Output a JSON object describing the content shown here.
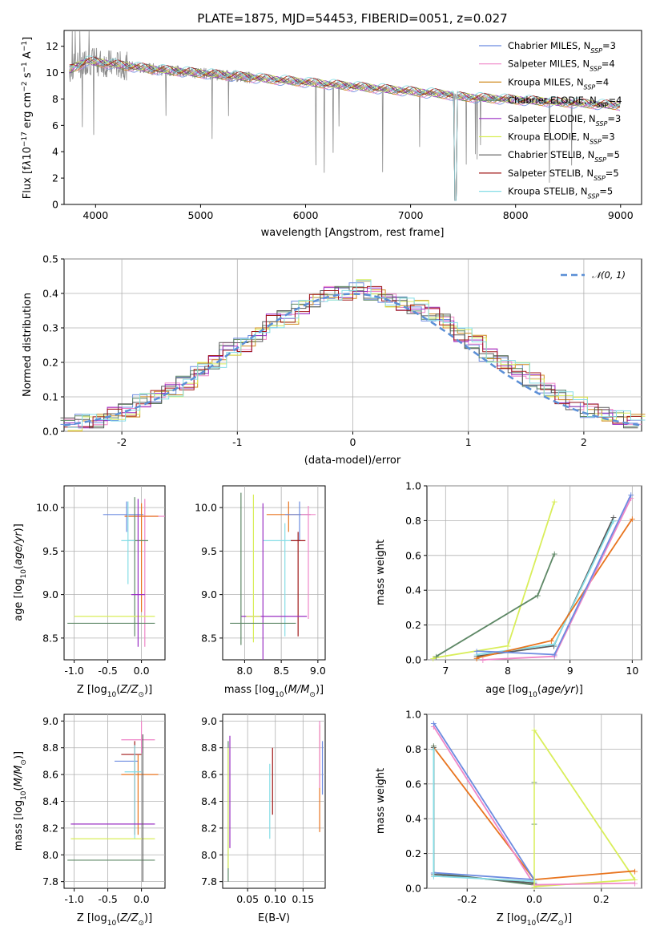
{
  "figure": {
    "title": "PLATE=1875, MJD=54453, FIBERID=0051, z=0.027"
  },
  "colors": {
    "chabrier_miles": "#6c8be0",
    "salpeter_miles": "#ef86c8",
    "kroupa_miles": "#d08a1e",
    "chabrier_elodie": "#5e8866",
    "salpeter_elodie": "#9a2fc3",
    "kroupa_elodie": "#d9ee5a",
    "chabrier_stelib": "#5a5a5a",
    "salpeter_stelib": "#a01818",
    "kroupa_stelib": "#85dde6",
    "data": "#8a8a8a",
    "fit_orange": "#e8741e",
    "gaussian": "#5b8fd6"
  },
  "legend_models": [
    {
      "name": "Chabrier MILES",
      "n": "3",
      "color": "#6c8be0"
    },
    {
      "name": "Salpeter MILES",
      "n": "4",
      "color": "#ef86c8"
    },
    {
      "name": "Kroupa MILES",
      "n": "4",
      "color": "#d08a1e"
    },
    {
      "name": "Chabrier ELODIE",
      "n": "4",
      "color": "#5e8866"
    },
    {
      "name": "Salpeter ELODIE",
      "n": "3",
      "color": "#9a2fc3"
    },
    {
      "name": "Kroupa ELODIE",
      "n": "3",
      "color": "#d9ee5a"
    },
    {
      "name": "Chabrier STELIB",
      "n": "5",
      "color": "#5a5a5a"
    },
    {
      "name": "Salpeter STELIB",
      "n": "5",
      "color": "#a01818"
    },
    {
      "name": "Kroupa STELIB",
      "n": "5",
      "color": "#85dde6"
    }
  ],
  "chart_data": [
    {
      "id": "spectrum",
      "type": "line",
      "title": "PLATE=1875, MJD=54453, FIBERID=0051, z=0.027",
      "xlabel": "wavelength [Angstrom, rest frame]",
      "ylabel": "Flux [fλ10⁻¹⁷ erg cm⁻² s⁻¹ A⁻¹]",
      "xlim": [
        3700,
        9200
      ],
      "ylim": [
        0,
        13.2
      ],
      "xticks": [
        4000,
        5000,
        6000,
        7000,
        8000,
        9000
      ],
      "yticks": [
        0,
        2,
        4,
        6,
        8,
        10,
        12
      ],
      "series": [
        {
          "x": [
            3750,
            3800,
            3850,
            3900,
            3950,
            4000,
            4100,
            4200,
            4300,
            4400,
            4500,
            4700,
            4900,
            5100,
            5300,
            5500,
            5700,
            5900,
            6100,
            6300,
            6500,
            6700,
            6900,
            7100,
            7300,
            7400,
            7420
          ],
          "y": [
            9.2,
            10.5,
            11.0,
            10.8,
            10.9,
            11.0,
            10.8,
            10.6,
            10.3,
            10.4,
            10.2,
            10.0,
            9.8,
            9.6,
            9.5,
            9.3,
            9.2,
            9.1,
            9.0,
            8.9,
            8.8,
            8.7,
            8.6,
            8.5,
            8.3,
            8.2,
            0.5
          ]
        },
        {
          "x": [
            7400,
            7600,
            7800,
            8000,
            8200,
            8400,
            8600,
            8800,
            9000
          ],
          "y": [
            8.1,
            8.0,
            7.9,
            7.8,
            7.8,
            7.7,
            7.6,
            7.5,
            7.5
          ]
        }
      ]
    },
    {
      "id": "residuals",
      "type": "bar",
      "xlabel": "(data-model)/error",
      "ylabel": "Normed distribution",
      "xlim": [
        -2.5,
        2.5
      ],
      "ylim": [
        0,
        0.5
      ],
      "xticks": [
        -2,
        -1,
        0,
        1,
        2
      ],
      "yticks": [
        0.0,
        0.1,
        0.2,
        0.3,
        0.4,
        0.5
      ],
      "legend": [
        "𝒩(0, 1)"
      ],
      "values": [
        0.02,
        0.03,
        0.03,
        0.05,
        0.06,
        0.09,
        0.1,
        0.12,
        0.14,
        0.18,
        0.2,
        0.24,
        0.25,
        0.28,
        0.32,
        0.33,
        0.36,
        0.38,
        0.4,
        0.4,
        0.42,
        0.4,
        0.38,
        0.37,
        0.36,
        0.34,
        0.32,
        0.28,
        0.26,
        0.22,
        0.2,
        0.18,
        0.15,
        0.12,
        0.1,
        0.08,
        0.06,
        0.05,
        0.04,
        0.03
      ]
    },
    {
      "id": "age_vs_Z",
      "type": "scatter",
      "xlabel": "Z [log₁₀(Z/Z⊙)]",
      "ylabel": "age  [log₁₀(age/yr)]",
      "xlim": [
        -1.15,
        0.35
      ],
      "ylim": [
        8.25,
        10.25
      ],
      "xticks": [
        -1.0,
        -0.5,
        0.0
      ],
      "yticks": [
        8.5,
        9.0,
        9.5,
        10.0
      ]
    },
    {
      "id": "age_vs_mass",
      "type": "scatter",
      "xlabel": "mass [log₁₀(M/M⊙)]",
      "xlim": [
        7.7,
        9.1
      ],
      "ylim": [
        8.25,
        10.25
      ],
      "xticks": [
        8.0,
        8.5,
        9.0
      ],
      "yticks": [
        8.5,
        9.0,
        9.5,
        10.0
      ]
    },
    {
      "id": "weight_vs_age",
      "type": "line",
      "xlabel": "age  [log₁₀(age/yr)]",
      "ylabel": "mass weight",
      "xlim": [
        6.7,
        10.15
      ],
      "ylim": [
        0,
        1
      ],
      "xticks": [
        7,
        8,
        9,
        10
      ],
      "yticks": [
        0.0,
        0.2,
        0.4,
        0.6,
        0.8,
        1.0
      ]
    },
    {
      "id": "mass_vs_Z",
      "type": "scatter",
      "xlabel": "Z [log₁₀(Z/Z⊙)]",
      "ylabel": "mass [log₁₀(M/M⊙)]",
      "xlim": [
        -1.15,
        0.35
      ],
      "ylim": [
        7.75,
        9.05
      ],
      "xticks": [
        -1.0,
        -0.5,
        0.0
      ],
      "yticks": [
        7.8,
        8.0,
        8.2,
        8.4,
        8.6,
        8.8,
        9.0
      ]
    },
    {
      "id": "mass_vs_ebv",
      "type": "scatter",
      "xlabel": "E(B-V)",
      "xlim": [
        0.005,
        0.19
      ],
      "ylim": [
        7.75,
        9.05
      ],
      "xticks": [
        0.05,
        0.1,
        0.15
      ],
      "yticks": [
        7.8,
        8.0,
        8.2,
        8.4,
        8.6,
        8.8,
        9.0
      ]
    },
    {
      "id": "weight_vs_Z",
      "type": "line",
      "xlabel": "Z [log₁₀(Z/Z⊙)]",
      "ylabel": "mass weight",
      "xlim": [
        -0.32,
        0.32
      ],
      "ylim": [
        0,
        1
      ],
      "xticks": [
        -0.2,
        0.0,
        0.2
      ],
      "yticks": [
        0.0,
        0.2,
        0.4,
        0.6,
        0.8,
        1.0
      ]
    }
  ],
  "text": {
    "spec_xlabel": "wavelength [Angstrom, rest frame]",
    "resid_xlabel": "(data-model)/error",
    "resid_ylabel": "Normed distribution",
    "gauss_label": "𝒩(0, 1)",
    "ageZ_ylabel": "age  [log₁₀(age/yr)]",
    "massZ_ylabel": "mass [log₁₀(M/M⊙)]",
    "weight_ylabel": "mass weight",
    "ebv_xlabel": "E(B-V)"
  }
}
